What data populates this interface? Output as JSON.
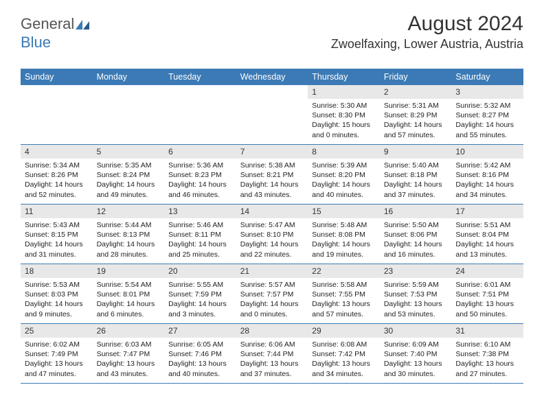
{
  "brand": {
    "part1": "General",
    "part2": "Blue"
  },
  "title": "August 2024",
  "location": "Zwoelfaxing, Lower Austria, Austria",
  "dayNames": [
    "Sunday",
    "Monday",
    "Tuesday",
    "Wednesday",
    "Thursday",
    "Friday",
    "Saturday"
  ],
  "colors": {
    "header_bg": "#3b7ab5",
    "header_text": "#ffffff",
    "daynum_bg": "#e8e8e8",
    "text": "#222222"
  },
  "weeks": [
    [
      {
        "n": "",
        "sr": "",
        "ss": "",
        "dl": ""
      },
      {
        "n": "",
        "sr": "",
        "ss": "",
        "dl": ""
      },
      {
        "n": "",
        "sr": "",
        "ss": "",
        "dl": ""
      },
      {
        "n": "",
        "sr": "",
        "ss": "",
        "dl": ""
      },
      {
        "n": "1",
        "sr": "Sunrise: 5:30 AM",
        "ss": "Sunset: 8:30 PM",
        "dl": "Daylight: 15 hours and 0 minutes."
      },
      {
        "n": "2",
        "sr": "Sunrise: 5:31 AM",
        "ss": "Sunset: 8:29 PM",
        "dl": "Daylight: 14 hours and 57 minutes."
      },
      {
        "n": "3",
        "sr": "Sunrise: 5:32 AM",
        "ss": "Sunset: 8:27 PM",
        "dl": "Daylight: 14 hours and 55 minutes."
      }
    ],
    [
      {
        "n": "4",
        "sr": "Sunrise: 5:34 AM",
        "ss": "Sunset: 8:26 PM",
        "dl": "Daylight: 14 hours and 52 minutes."
      },
      {
        "n": "5",
        "sr": "Sunrise: 5:35 AM",
        "ss": "Sunset: 8:24 PM",
        "dl": "Daylight: 14 hours and 49 minutes."
      },
      {
        "n": "6",
        "sr": "Sunrise: 5:36 AM",
        "ss": "Sunset: 8:23 PM",
        "dl": "Daylight: 14 hours and 46 minutes."
      },
      {
        "n": "7",
        "sr": "Sunrise: 5:38 AM",
        "ss": "Sunset: 8:21 PM",
        "dl": "Daylight: 14 hours and 43 minutes."
      },
      {
        "n": "8",
        "sr": "Sunrise: 5:39 AM",
        "ss": "Sunset: 8:20 PM",
        "dl": "Daylight: 14 hours and 40 minutes."
      },
      {
        "n": "9",
        "sr": "Sunrise: 5:40 AM",
        "ss": "Sunset: 8:18 PM",
        "dl": "Daylight: 14 hours and 37 minutes."
      },
      {
        "n": "10",
        "sr": "Sunrise: 5:42 AM",
        "ss": "Sunset: 8:16 PM",
        "dl": "Daylight: 14 hours and 34 minutes."
      }
    ],
    [
      {
        "n": "11",
        "sr": "Sunrise: 5:43 AM",
        "ss": "Sunset: 8:15 PM",
        "dl": "Daylight: 14 hours and 31 minutes."
      },
      {
        "n": "12",
        "sr": "Sunrise: 5:44 AM",
        "ss": "Sunset: 8:13 PM",
        "dl": "Daylight: 14 hours and 28 minutes."
      },
      {
        "n": "13",
        "sr": "Sunrise: 5:46 AM",
        "ss": "Sunset: 8:11 PM",
        "dl": "Daylight: 14 hours and 25 minutes."
      },
      {
        "n": "14",
        "sr": "Sunrise: 5:47 AM",
        "ss": "Sunset: 8:10 PM",
        "dl": "Daylight: 14 hours and 22 minutes."
      },
      {
        "n": "15",
        "sr": "Sunrise: 5:48 AM",
        "ss": "Sunset: 8:08 PM",
        "dl": "Daylight: 14 hours and 19 minutes."
      },
      {
        "n": "16",
        "sr": "Sunrise: 5:50 AM",
        "ss": "Sunset: 8:06 PM",
        "dl": "Daylight: 14 hours and 16 minutes."
      },
      {
        "n": "17",
        "sr": "Sunrise: 5:51 AM",
        "ss": "Sunset: 8:04 PM",
        "dl": "Daylight: 14 hours and 13 minutes."
      }
    ],
    [
      {
        "n": "18",
        "sr": "Sunrise: 5:53 AM",
        "ss": "Sunset: 8:03 PM",
        "dl": "Daylight: 14 hours and 9 minutes."
      },
      {
        "n": "19",
        "sr": "Sunrise: 5:54 AM",
        "ss": "Sunset: 8:01 PM",
        "dl": "Daylight: 14 hours and 6 minutes."
      },
      {
        "n": "20",
        "sr": "Sunrise: 5:55 AM",
        "ss": "Sunset: 7:59 PM",
        "dl": "Daylight: 14 hours and 3 minutes."
      },
      {
        "n": "21",
        "sr": "Sunrise: 5:57 AM",
        "ss": "Sunset: 7:57 PM",
        "dl": "Daylight: 14 hours and 0 minutes."
      },
      {
        "n": "22",
        "sr": "Sunrise: 5:58 AM",
        "ss": "Sunset: 7:55 PM",
        "dl": "Daylight: 13 hours and 57 minutes."
      },
      {
        "n": "23",
        "sr": "Sunrise: 5:59 AM",
        "ss": "Sunset: 7:53 PM",
        "dl": "Daylight: 13 hours and 53 minutes."
      },
      {
        "n": "24",
        "sr": "Sunrise: 6:01 AM",
        "ss": "Sunset: 7:51 PM",
        "dl": "Daylight: 13 hours and 50 minutes."
      }
    ],
    [
      {
        "n": "25",
        "sr": "Sunrise: 6:02 AM",
        "ss": "Sunset: 7:49 PM",
        "dl": "Daylight: 13 hours and 47 minutes."
      },
      {
        "n": "26",
        "sr": "Sunrise: 6:03 AM",
        "ss": "Sunset: 7:47 PM",
        "dl": "Daylight: 13 hours and 43 minutes."
      },
      {
        "n": "27",
        "sr": "Sunrise: 6:05 AM",
        "ss": "Sunset: 7:46 PM",
        "dl": "Daylight: 13 hours and 40 minutes."
      },
      {
        "n": "28",
        "sr": "Sunrise: 6:06 AM",
        "ss": "Sunset: 7:44 PM",
        "dl": "Daylight: 13 hours and 37 minutes."
      },
      {
        "n": "29",
        "sr": "Sunrise: 6:08 AM",
        "ss": "Sunset: 7:42 PM",
        "dl": "Daylight: 13 hours and 34 minutes."
      },
      {
        "n": "30",
        "sr": "Sunrise: 6:09 AM",
        "ss": "Sunset: 7:40 PM",
        "dl": "Daylight: 13 hours and 30 minutes."
      },
      {
        "n": "31",
        "sr": "Sunrise: 6:10 AM",
        "ss": "Sunset: 7:38 PM",
        "dl": "Daylight: 13 hours and 27 minutes."
      }
    ]
  ]
}
